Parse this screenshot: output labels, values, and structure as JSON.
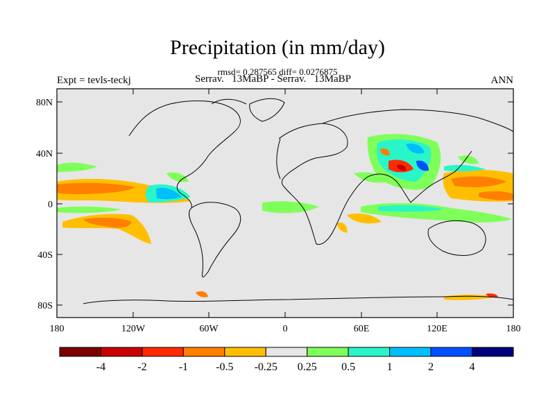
{
  "title": "Precipitation (in mm/day)",
  "stats": "rmsd= 0.287565 diff= 0.0276875",
  "left_label": "Expt = tevls-teckj",
  "center_label": "Serrav.   13MaBP - Serrav.   13MaBP",
  "right_label": "ANN",
  "lat_ticks": [
    "80N",
    "40N",
    "0",
    "40S",
    "80S"
  ],
  "lon_ticks": [
    "180",
    "120W",
    "60W",
    "0",
    "60E",
    "120E",
    "180"
  ],
  "colorbar": {
    "colors": [
      "#7a0000",
      "#c80000",
      "#ff2a00",
      "#ff7f00",
      "#ffbf00",
      "#e6e6e6",
      "#7fff5a",
      "#2af5c8",
      "#00bfff",
      "#0050ff",
      "#00007a"
    ],
    "labels": [
      "-4",
      "-2",
      "-1",
      "-0.5",
      "-0.25",
      "0.25",
      "0.5",
      "1",
      "2",
      "4"
    ]
  },
  "colors": {
    "ocean_land_fill": "#e6e6e6",
    "coast": "#000000"
  }
}
